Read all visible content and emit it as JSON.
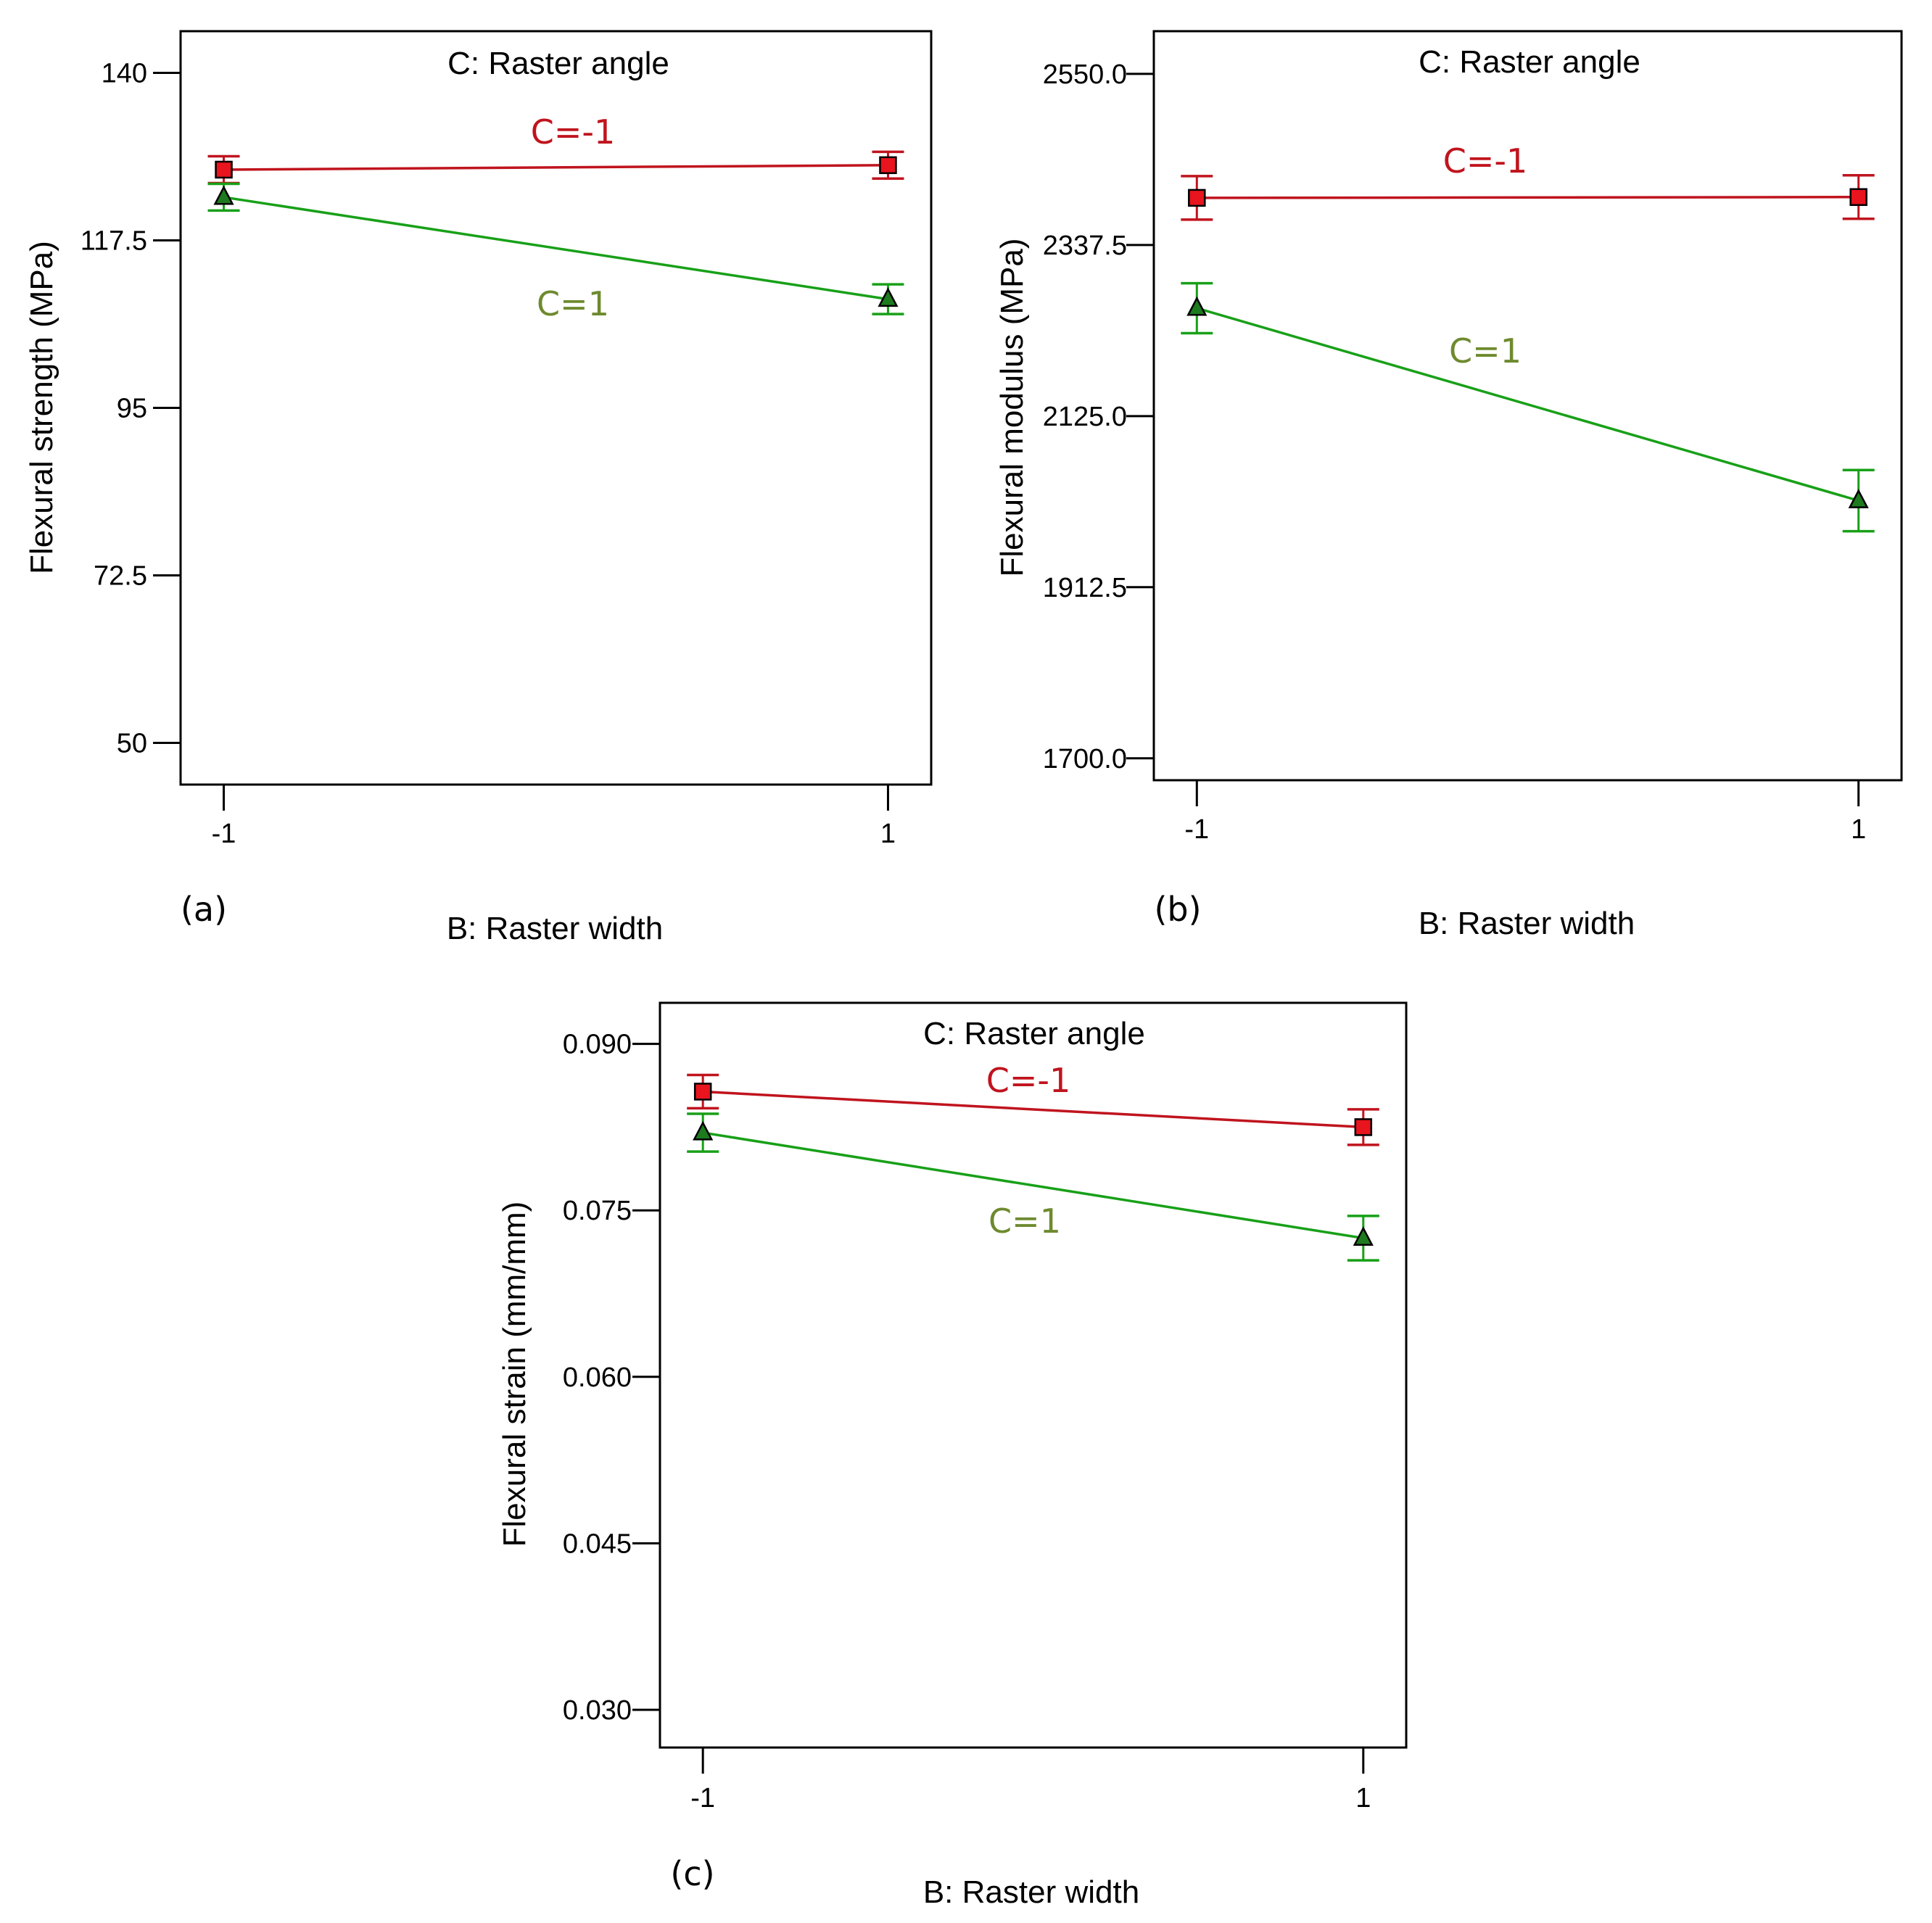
{
  "colors": {
    "series_neg": "#c0141e",
    "series_neg_marker": "#e8141e",
    "series_pos_line": "#18a018",
    "series_pos_marker": "#1e7a1e",
    "series_pos_label": "#6e8a2e",
    "axis": "#000000"
  },
  "chart_data": [
    {
      "type": "line",
      "panel_label": "(a)",
      "title": "C: Raster angle",
      "xlabel": "B: Raster width",
      "ylabel": "Flexural strength (MPa)",
      "x_categories": [
        "-1",
        "1"
      ],
      "x": [
        -1,
        1
      ],
      "xlim": [
        -1.13,
        1.13
      ],
      "ylim": [
        44.4,
        145.6
      ],
      "yticks": [
        50,
        72.5,
        95,
        117.5,
        140
      ],
      "ytick_labels": [
        "50",
        "72.5",
        "95",
        "117.5",
        "140"
      ],
      "grid": false,
      "series": [
        {
          "name": "C=-1",
          "values": [
            127.0,
            127.6
          ],
          "err": [
            1.8,
            1.8
          ],
          "marker": "square",
          "color_key": "neg"
        },
        {
          "name": "C=1",
          "values": [
            123.3,
            109.6
          ],
          "err": [
            1.8,
            2.0
          ],
          "marker": "triangle",
          "color_key": "pos"
        }
      ]
    },
    {
      "type": "line",
      "panel_label": "(b)",
      "title": "C: Raster angle",
      "xlabel": "B: Raster width",
      "ylabel": "Flexural modulus (MPa)",
      "x_categories": [
        "-1",
        "1"
      ],
      "x": [
        -1,
        1
      ],
      "xlim": [
        -1.13,
        1.13
      ],
      "ylim": [
        1672.8,
        2603.0
      ],
      "yticks": [
        1700.0,
        1912.5,
        2125.0,
        2337.5,
        2550.0
      ],
      "ytick_labels": [
        "1700.0",
        "1912.5",
        "2125.0",
        "2337.5",
        "2550.0"
      ],
      "grid": false,
      "series": [
        {
          "name": "C=-1",
          "values": [
            2396,
            2397
          ],
          "err": [
            27,
            27
          ],
          "marker": "square",
          "color_key": "neg"
        },
        {
          "name": "C=1",
          "values": [
            2259,
            2020
          ],
          "err": [
            31,
            38
          ],
          "marker": "triangle",
          "color_key": "pos"
        }
      ]
    },
    {
      "type": "line",
      "panel_label": "(c)",
      "title": "C: Raster angle",
      "xlabel": "B: Raster width",
      "ylabel": "Flexural strain (mm/mm)",
      "x_categories": [
        "-1",
        "1"
      ],
      "x": [
        -1,
        1
      ],
      "xlim": [
        -1.13,
        1.13
      ],
      "ylim": [
        0.0266,
        0.0937
      ],
      "yticks": [
        0.03,
        0.045,
        0.06,
        0.075,
        0.09
      ],
      "ytick_labels": [
        "0.030",
        "0.045",
        "0.060",
        "0.075",
        "0.090"
      ],
      "grid": false,
      "series": [
        {
          "name": "C=-1",
          "values": [
            0.0857,
            0.0825
          ],
          "err": [
            0.0015,
            0.0016
          ],
          "marker": "square",
          "color_key": "neg"
        },
        {
          "name": "C=1",
          "values": [
            0.082,
            0.0725
          ],
          "err": [
            0.0017,
            0.002
          ],
          "marker": "triangle",
          "color_key": "pos"
        }
      ]
    }
  ]
}
